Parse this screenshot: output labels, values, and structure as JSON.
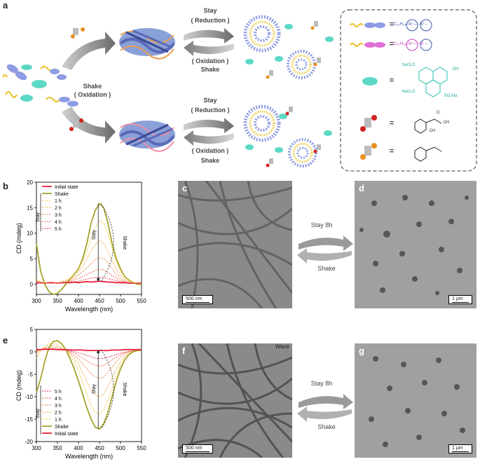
{
  "panel_labels": {
    "a": "a",
    "b": "b",
    "c": "c",
    "d": "d",
    "e": "e",
    "f": "f",
    "g": "g"
  },
  "scheme": {
    "shake_oxidation": [
      "Shake",
      "( Oxidation )"
    ],
    "top_arrows": {
      "stay": "Stay",
      "reduction": "( Reduction )",
      "oxidation": "( Oxidation )",
      "shake": "Shake"
    },
    "bottom_arrows": {
      "stay": "Stay",
      "reduction": "( Reduction )",
      "oxidation": "( Oxidation )",
      "shake": "Shake"
    },
    "legend": {
      "eq": "=",
      "viologen1": "C₁₂H₂₅–N⁺– –N⁺–",
      "viologen2": "C₁₂H₂₅–N⁺– –N⁺–",
      "pyranine_labels": [
        "NaO₃S",
        "OH",
        "NaO₃S",
        "SO₃Na"
      ],
      "acid_labels": [
        "O",
        "OH",
        "OH"
      ]
    }
  },
  "tem": {
    "c_scale": "500 nm",
    "d_scale": "1 µm",
    "f_scale": "500 nm",
    "g_scale": "1 µm",
    "f_corner": "Wave",
    "arrow1": {
      "top": "Stay 8h",
      "bottom": "Shake"
    },
    "arrow2": {
      "top": "Stay 8h",
      "bottom": "Shake"
    }
  },
  "chart_data": [
    {
      "type": "line",
      "panel": "b",
      "xlabel": "Wavelength (nm)",
      "ylabel": "CD (mdeg)",
      "xlim": [
        300,
        550
      ],
      "ylim": [
        -2,
        20
      ],
      "xticks": [
        300,
        350,
        400,
        450,
        500,
        550
      ],
      "yticks": [
        0,
        5,
        10,
        15,
        20
      ],
      "annotations": [
        "Stay",
        "Stay",
        "Shake"
      ],
      "legend": [
        "Initial state",
        "Shake",
        "1 h",
        "2 h",
        "3 h",
        "4 h",
        "5 h"
      ],
      "colors": [
        "#e8203a",
        "#a5a32a",
        "#f3c430",
        "#f2a33a",
        "#ee8040",
        "#e85a45",
        "#d9304a"
      ],
      "x": [
        300,
        310,
        320,
        330,
        340,
        350,
        360,
        370,
        380,
        390,
        400,
        410,
        420,
        430,
        440,
        450,
        460,
        470,
        480,
        490,
        500,
        510,
        520,
        530,
        540,
        550
      ],
      "series": [
        {
          "name": "Initial state",
          "values": [
            0.2,
            0.3,
            0.2,
            0.3,
            0.3,
            0.2,
            0.3,
            0.3,
            0.3,
            0.4,
            0.3,
            0.4,
            0.5,
            0.4,
            0.5,
            0.6,
            0.5,
            0.4,
            0.4,
            0.3,
            0.3,
            0.3,
            0.2,
            0.2,
            0.2,
            0.2
          ]
        },
        {
          "name": "Shake",
          "values": [
            8.0,
            2.5,
            0.0,
            -1.5,
            -2.0,
            -1.8,
            -1.0,
            0.0,
            1.0,
            2.0,
            3.0,
            5.0,
            8.0,
            12.0,
            14.5,
            15.8,
            15.0,
            12.0,
            8.0,
            5.0,
            3.0,
            1.5,
            0.8,
            0.3,
            0.0,
            0.0
          ]
        },
        {
          "name": "1 h",
          "values": [
            1.0,
            0.5,
            0.3,
            0.2,
            0.2,
            0.3,
            0.5,
            0.8,
            1.2,
            2.0,
            3.0,
            4.5,
            6.5,
            9.0,
            11.0,
            12.5,
            12.0,
            10.0,
            7.0,
            4.5,
            2.5,
            1.5,
            0.8,
            0.4,
            0.2,
            0.1
          ]
        },
        {
          "name": "2 h",
          "values": [
            0.8,
            0.4,
            0.2,
            0.2,
            0.2,
            0.3,
            0.4,
            0.6,
            1.0,
            1.5,
            2.5,
            3.5,
            5.0,
            6.5,
            7.8,
            8.5,
            8.0,
            6.5,
            4.5,
            3.0,
            1.8,
            1.0,
            0.6,
            0.3,
            0.2,
            0.1
          ]
        },
        {
          "name": "3 h",
          "values": [
            0.6,
            0.3,
            0.2,
            0.2,
            0.2,
            0.2,
            0.3,
            0.5,
            0.8,
            1.2,
            1.8,
            2.5,
            3.2,
            4.0,
            4.8,
            5.2,
            5.0,
            4.2,
            3.0,
            2.0,
            1.2,
            0.7,
            0.4,
            0.2,
            0.1,
            0.1
          ]
        },
        {
          "name": "4 h",
          "values": [
            0.5,
            0.3,
            0.2,
            0.2,
            0.2,
            0.2,
            0.3,
            0.4,
            0.6,
            0.8,
            1.1,
            1.5,
            1.9,
            2.3,
            2.7,
            2.9,
            2.8,
            2.3,
            1.7,
            1.2,
            0.8,
            0.5,
            0.3,
            0.2,
            0.1,
            0.1
          ]
        },
        {
          "name": "5 h",
          "values": [
            0.4,
            0.3,
            0.2,
            0.2,
            0.2,
            0.2,
            0.3,
            0.3,
            0.4,
            0.5,
            0.6,
            0.8,
            1.0,
            1.2,
            1.3,
            1.4,
            1.3,
            1.1,
            0.9,
            0.7,
            0.5,
            0.4,
            0.3,
            0.2,
            0.1,
            0.1
          ]
        }
      ]
    },
    {
      "type": "line",
      "panel": "e",
      "xlabel": "Wavelength (nm)",
      "ylabel": "CD (mdeg)",
      "xlim": [
        300,
        550
      ],
      "ylim": [
        -20,
        5
      ],
      "xticks": [
        300,
        350,
        400,
        450,
        500,
        550
      ],
      "yticks": [
        -20,
        -15,
        -10,
        -5,
        0,
        5
      ],
      "annotations": [
        "Stay",
        "Stay",
        "Shake"
      ],
      "legend": [
        "5 h",
        "4 h",
        "3 h",
        "2 h",
        "1 h",
        "Shake",
        "Initial state"
      ],
      "colors": [
        "#d9304a",
        "#e85a45",
        "#ee8040",
        "#f2a33a",
        "#f3c430",
        "#a5a32a",
        "#e8203a"
      ],
      "x": [
        300,
        310,
        320,
        330,
        340,
        350,
        360,
        370,
        380,
        390,
        400,
        410,
        420,
        430,
        440,
        450,
        460,
        470,
        480,
        490,
        500,
        510,
        520,
        530,
        540,
        550
      ],
      "series": [
        {
          "name": "5 h",
          "values": [
            0.3,
            0.4,
            0.5,
            0.5,
            0.5,
            0.5,
            0.4,
            0.3,
            0.2,
            0.0,
            -0.2,
            -0.5,
            -0.8,
            -1.1,
            -1.4,
            -1.5,
            -1.4,
            -1.2,
            -0.9,
            -0.6,
            -0.3,
            -0.1,
            0.1,
            0.2,
            0.3,
            0.3
          ]
        },
        {
          "name": "4 h",
          "values": [
            0.2,
            0.4,
            0.6,
            0.7,
            0.7,
            0.6,
            0.5,
            0.3,
            0.0,
            -0.3,
            -0.8,
            -1.4,
            -2.0,
            -2.6,
            -3.0,
            -3.2,
            -3.0,
            -2.5,
            -1.8,
            -1.2,
            -0.6,
            -0.2,
            0.1,
            0.2,
            0.3,
            0.3
          ]
        },
        {
          "name": "3 h",
          "values": [
            0.0,
            0.5,
            0.8,
            1.0,
            1.0,
            0.9,
            0.6,
            0.3,
            -0.2,
            -0.8,
            -1.6,
            -2.6,
            -3.8,
            -4.8,
            -5.6,
            -6.0,
            -5.6,
            -4.6,
            -3.4,
            -2.2,
            -1.2,
            -0.5,
            0.0,
            0.2,
            0.3,
            0.3
          ]
        },
        {
          "name": "2 h",
          "values": [
            -0.5,
            0.4,
            1.0,
            1.3,
            1.4,
            1.2,
            0.8,
            0.3,
            -0.4,
            -1.4,
            -2.8,
            -4.6,
            -6.6,
            -8.4,
            -9.6,
            -10.0,
            -9.4,
            -7.8,
            -5.8,
            -3.8,
            -2.2,
            -1.0,
            -0.2,
            0.1,
            0.3,
            0.3
          ]
        },
        {
          "name": "1 h",
          "values": [
            -1.5,
            0.2,
            1.2,
            1.8,
            1.9,
            1.6,
            1.0,
            0.3,
            -0.8,
            -2.2,
            -4.2,
            -6.8,
            -9.6,
            -12.0,
            -13.4,
            -13.8,
            -13.0,
            -10.8,
            -8.0,
            -5.2,
            -3.0,
            -1.5,
            -0.5,
            0.0,
            0.2,
            0.3
          ]
        },
        {
          "name": "Shake",
          "values": [
            -9.0,
            -6.0,
            -2.0,
            1.0,
            2.3,
            2.5,
            1.8,
            0.5,
            -1.5,
            -3.8,
            -6.5,
            -9.5,
            -12.5,
            -15.0,
            -16.8,
            -17.2,
            -16.0,
            -13.5,
            -10.0,
            -6.5,
            -3.8,
            -1.8,
            -0.6,
            0.0,
            0.3,
            0.3
          ]
        },
        {
          "name": "Initial state",
          "values": [
            0.5,
            0.5,
            0.6,
            0.6,
            0.6,
            0.5,
            0.5,
            0.5,
            0.4,
            0.4,
            0.4,
            0.4,
            0.3,
            0.3,
            0.3,
            0.3,
            0.3,
            0.3,
            0.4,
            0.4,
            0.4,
            0.5,
            0.5,
            0.5,
            0.5,
            0.5
          ]
        }
      ]
    }
  ]
}
